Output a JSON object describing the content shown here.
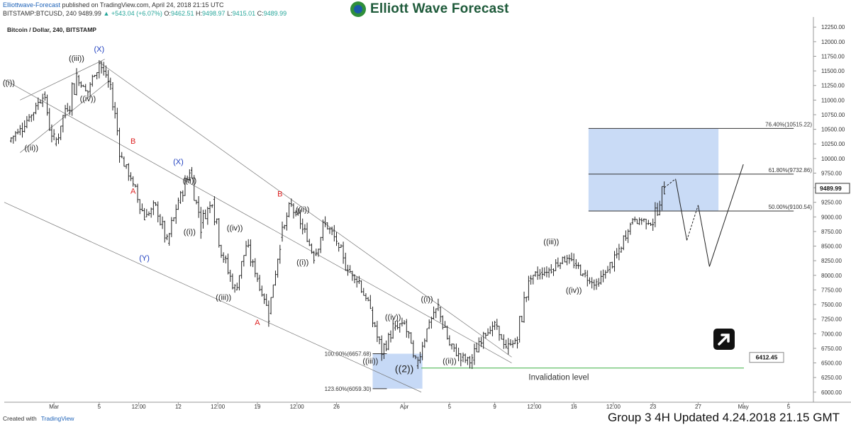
{
  "publisher": {
    "author": "Elliottwave-Forecast",
    "text": "published on TradingView.com, April 24, 2018 21:15 UTC"
  },
  "quote": {
    "symbol": "BITSTAMP:BTCUSD, 240",
    "last": "9489.99",
    "change": "▲ +543.04 (+6.07%)",
    "o_label": "O:",
    "o": "9462.51",
    "h_label": "H:",
    "h": "9498.97",
    "l_label": "L:",
    "l": "9415.01",
    "c_label": "C:",
    "c": "9489.99"
  },
  "logo": {
    "text": "Elliott Wave Forecast"
  },
  "footer": {
    "created_with": "Created with",
    "brand": "TradingView",
    "update_note": "Group 3 4H Updated 4.24.2018 21.15 GMT"
  },
  "chart_data": {
    "type": "line",
    "title": "Bitcoin / Dollar, 240, BITSTAMP",
    "y_ticks": [
      6000,
      6250,
      6500,
      6750,
      7000,
      7250,
      7500,
      7750,
      8000,
      8250,
      8500,
      8750,
      9000,
      9250,
      9500,
      9750,
      10000,
      10250,
      10500,
      10750,
      11000,
      11250,
      11500,
      11750,
      12000,
      12250
    ],
    "ylim": [
      5900,
      12350
    ],
    "x_ticks": [
      "Mar",
      "5",
      "12:00",
      "12",
      "12:00",
      "19",
      "12:00",
      "26",
      "Apr",
      "5",
      "9",
      "12:00",
      "16",
      "12:00",
      "23",
      "27",
      "May",
      "5"
    ],
    "price_path": [
      {
        "t": "Feb 25",
        "y": 10300
      },
      {
        "t": "Feb 27",
        "y": 10750
      },
      {
        "t": "Feb 28",
        "y": 11100
      },
      {
        "t": "Mar 1",
        "y": 10250
      },
      {
        "t": "Mar 3",
        "y": 11400
      },
      {
        "t": "Mar 4",
        "y": 11150
      },
      {
        "t": "Mar 5",
        "y": 11650
      },
      {
        "t": "Mar 6",
        "y": 11200
      },
      {
        "t": "Mar 7",
        "y": 10000
      },
      {
        "t": "Mar 8",
        "y": 9550
      },
      {
        "t": "Mar 9",
        "y": 9000
      },
      {
        "t": "Mar 10",
        "y": 9200
      },
      {
        "t": "Mar 11",
        "y": 8550
      },
      {
        "t": "Mar 12",
        "y": 9250
      },
      {
        "t": "Mar 13",
        "y": 9800
      },
      {
        "t": "Mar 14",
        "y": 8900
      },
      {
        "t": "Mar 15",
        "y": 9300
      },
      {
        "t": "Mar 16",
        "y": 8300
      },
      {
        "t": "Mar 17",
        "y": 7750
      },
      {
        "t": "Mar 18",
        "y": 8500
      },
      {
        "t": "Mar 19",
        "y": 7950
      },
      {
        "t": "Mar 20",
        "y": 7350
      },
      {
        "t": "Mar 21",
        "y": 8650
      },
      {
        "t": "Mar 22",
        "y": 9200
      },
      {
        "t": "Mar 23",
        "y": 8800
      },
      {
        "t": "Mar 24",
        "y": 8350
      },
      {
        "t": "Mar 25",
        "y": 8900
      },
      {
        "t": "Mar 26",
        "y": 8550
      },
      {
        "t": "Mar 27",
        "y": 8100
      },
      {
        "t": "Mar 28",
        "y": 7900
      },
      {
        "t": "Mar 29",
        "y": 7400
      },
      {
        "t": "Mar 30",
        "y": 6650
      },
      {
        "t": "Mar 31",
        "y": 7100
      },
      {
        "t": "Apr 1",
        "y": 7200
      },
      {
        "t": "Apr 2",
        "y": 6450
      },
      {
        "t": "Apr 3",
        "y": 7100
      },
      {
        "t": "Apr 4",
        "y": 7450
      },
      {
        "t": "Apr 5",
        "y": 6800
      },
      {
        "t": "Apr 6",
        "y": 6600
      },
      {
        "t": "Apr 7",
        "y": 6550
      },
      {
        "t": "Apr 8",
        "y": 7000
      },
      {
        "t": "Apr 9",
        "y": 7150
      },
      {
        "t": "Apr 10",
        "y": 6750
      },
      {
        "t": "Apr 11",
        "y": 6900
      },
      {
        "t": "Apr 12",
        "y": 7950
      },
      {
        "t": "Apr 13",
        "y": 8050
      },
      {
        "t": "Apr 14",
        "y": 8100
      },
      {
        "t": "Apr 15",
        "y": 8300
      },
      {
        "t": "Apr 16",
        "y": 8200
      },
      {
        "t": "Apr 17",
        "y": 8000
      },
      {
        "t": "Apr 18",
        "y": 7850
      },
      {
        "t": "Apr 19",
        "y": 8100
      },
      {
        "t": "Apr 20",
        "y": 8400
      },
      {
        "t": "Apr 21",
        "y": 8900
      },
      {
        "t": "Apr 22",
        "y": 8950
      },
      {
        "t": "Apr 23",
        "y": 8900
      },
      {
        "t": "Apr 24",
        "y": 9500
      }
    ],
    "projection": [
      {
        "t": "Apr 25",
        "y": 9650
      },
      {
        "t": "Apr 26",
        "y": 8600
      },
      {
        "t": "Apr 27",
        "y": 9200
      },
      {
        "t": "Apr 28",
        "y": 8150
      },
      {
        "t": "May 1",
        "y": 9900
      }
    ],
    "fib_levels": [
      {
        "label": "76.40%(10515.22)",
        "value": 10515.22
      },
      {
        "label": "61.80%(9732.86)",
        "value": 9732.86
      },
      {
        "label": "50.00%(9100.54)",
        "value": 9100.54
      }
    ],
    "lower_fib_levels": [
      {
        "label": "100.00%(6657.68)",
        "value": 6657.68
      },
      {
        "label": "123.60%(6059.30)",
        "value": 6059.3
      }
    ],
    "current_price": "9489.99",
    "invalidation": {
      "value": 6412.45,
      "price_label": "6412.45",
      "label": "Invalidation level"
    },
    "wave_labels": [
      {
        "text": "((i))",
        "t": "Feb 25",
        "y": 11250,
        "color": "#222"
      },
      {
        "text": "((ii))",
        "t": "Feb 27",
        "y": 10140,
        "color": "#222"
      },
      {
        "text": "((iii))",
        "t": "Mar 3",
        "y": 11670,
        "color": "#222"
      },
      {
        "text": "((iv))",
        "t": "Mar 4",
        "y": 10980,
        "color": "#222"
      },
      {
        "text": "(X)",
        "t": "Mar 5",
        "y": 11830,
        "color": "#1f3fbf"
      },
      {
        "text": "B",
        "t": "Mar 8",
        "y": 10250,
        "color": "#d22"
      },
      {
        "text": "A",
        "t": "Mar 8",
        "y": 9400,
        "color": "#d22"
      },
      {
        "text": "(Y)",
        "t": "Mar 9",
        "y": 8250,
        "color": "#1f3fbf"
      },
      {
        "text": "(X)",
        "t": "Mar 12",
        "y": 9900,
        "color": "#1f3fbf"
      },
      {
        "text": "((ii))",
        "t": "Mar 13",
        "y": 9580,
        "color": "#222"
      },
      {
        "text": "((i))",
        "t": "Mar 13",
        "y": 8700,
        "color": "#222"
      },
      {
        "text": "((iv))",
        "t": "Mar 17",
        "y": 8770,
        "color": "#222"
      },
      {
        "text": "((iii))",
        "t": "Mar 16",
        "y": 7580,
        "color": "#222"
      },
      {
        "text": "A",
        "t": "Mar 19",
        "y": 7150,
        "color": "#d22"
      },
      {
        "text": "B",
        "t": "Mar 21",
        "y": 9350,
        "color": "#d22"
      },
      {
        "text": "((ii))",
        "t": "Mar 23",
        "y": 9080,
        "color": "#222"
      },
      {
        "text": "((i))",
        "t": "Mar 23",
        "y": 8180,
        "color": "#222"
      },
      {
        "text": "((iv))",
        "t": "Mar 31",
        "y": 7240,
        "color": "#222"
      },
      {
        "text": "((iii))",
        "t": "Mar 29",
        "y": 6490,
        "color": "#222"
      },
      {
        "text": "((2))",
        "t": "Apr 1",
        "y": 6340,
        "color": "#222"
      },
      {
        "text": "((i))",
        "t": "Apr 3",
        "y": 7550,
        "color": "#222"
      },
      {
        "text": "((ii))",
        "t": "Apr 5",
        "y": 6490,
        "color": "#222"
      },
      {
        "text": "((iii))",
        "t": "Apr 14",
        "y": 8530,
        "color": "#222"
      },
      {
        "text": "((iv))",
        "t": "Apr 16",
        "y": 7700,
        "color": "#222"
      }
    ]
  }
}
